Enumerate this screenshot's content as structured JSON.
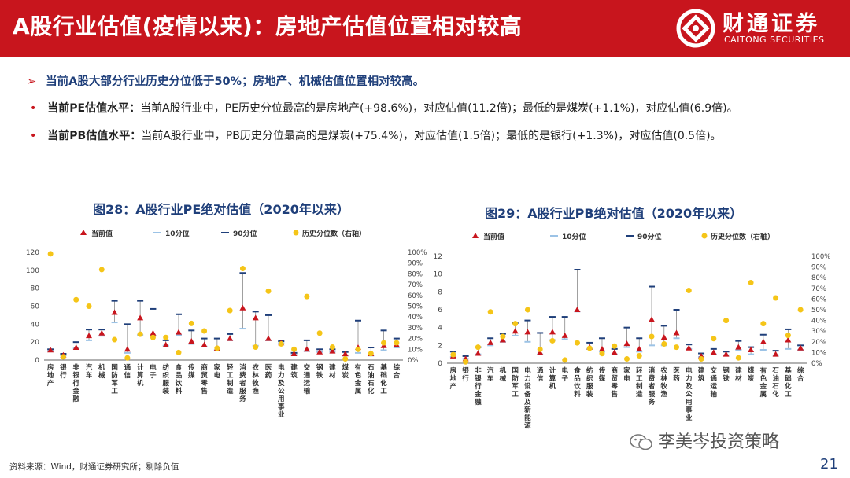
{
  "header": {
    "title": "A股行业估值(疫情以来)：房地产估值位置相对较高",
    "logo_cn": "财通证券",
    "logo_en": "CAITONG SECURITIES"
  },
  "summary": {
    "arrow": "➢",
    "text": "当前A股大部分行业历史分位低于50%；房地产、机械估值位置相对较高。"
  },
  "bullets": [
    {
      "dot": "•",
      "label": "当前PE估值水平：",
      "text": "当前A股行业中，PE历史分位最高的是房地产(+98.6%)，对应估值(11.2倍)；最低的是煤炭(+1.1%)，对应估值(6.9倍)。"
    },
    {
      "dot": "•",
      "label": "当前PB估值水平：",
      "text": "当前A股行业中，PB历史分位最高的是煤炭(+75.4%)，对应估值(1.5倍)；最低的是银行(+1.3%)，对应估值(0.5倍)。"
    }
  ],
  "colors": {
    "red": "#c8151d",
    "navy": "#1f3f7a",
    "lightblue": "#9cc3e6",
    "gold": "#f5c518"
  },
  "chart_data": [
    {
      "type": "scatter",
      "title": "图28：A股行业PE绝对估值（2020年以来）",
      "legend": [
        "当前值",
        "10分位",
        "90分位",
        "历史分位数（右轴）"
      ],
      "categories": [
        "房地产",
        "银行",
        "非银行金融",
        "汽车",
        "机械",
        "国防军工",
        "通信",
        "计算机",
        "电子",
        "纺织服装",
        "食品饮料",
        "传媒",
        "商贸零售",
        "家电",
        "轻工制造",
        "消费者服务",
        "农林牧渔",
        "医药",
        "电力及公用事业",
        "建筑",
        "交通运输",
        "钢铁",
        "建材",
        "煤炭",
        "有色金属",
        "石油石化",
        "基础化工",
        "综合"
      ],
      "current": [
        11.2,
        5.5,
        14,
        27,
        30,
        53,
        12,
        47,
        30,
        17,
        31,
        21,
        17,
        13,
        24,
        58,
        47,
        24,
        19,
        7,
        12,
        9,
        10,
        6.9,
        14,
        7,
        16,
        17
      ],
      "p10": [
        10,
        5,
        13,
        22,
        27,
        42,
        8,
        28,
        27,
        16,
        28,
        18,
        15,
        11,
        22,
        35,
        16,
        22,
        19,
        6,
        10,
        9,
        9,
        5,
        8,
        5,
        11,
        14
      ],
      "p90": [
        12,
        7,
        20,
        34,
        34,
        66,
        40,
        66,
        57,
        22,
        51,
        33,
        24,
        24,
        29,
        97,
        54,
        50,
        21,
        8,
        22,
        12,
        12,
        9,
        44,
        14,
        33,
        24
      ],
      "percentile": [
        98.6,
        3,
        56,
        50,
        84,
        19,
        2,
        24,
        21,
        21,
        7,
        34,
        27,
        11,
        46,
        85,
        12,
        64,
        15,
        10,
        59,
        25,
        12,
        1.1,
        10,
        6,
        16,
        16
      ],
      "ylim": [
        0,
        120
      ],
      "y_ticks": [
        0,
        20,
        40,
        60,
        80,
        100,
        120
      ],
      "y2_ticks": [
        "0%",
        "10%",
        "20%",
        "30%",
        "40%",
        "50%",
        "60%",
        "70%",
        "80%",
        "90%",
        "100%"
      ]
    },
    {
      "type": "scatter",
      "title": "图29：A股行业PB绝对估值（2020年以来）",
      "legend": [
        "当前值",
        "10分位",
        "90分位",
        "历史分位数（右轴）"
      ],
      "categories": [
        "房地产",
        "银行",
        "非银行金融",
        "汽车",
        "机械",
        "国防军工",
        "电力设备及新能源",
        "通信",
        "计算机",
        "电子",
        "食品饮料",
        "纺织服装",
        "传媒",
        "商贸零售",
        "家电",
        "轻工制造",
        "消费者服务",
        "农林牧渔",
        "医药",
        "电力及公用事业",
        "建筑",
        "交通运输",
        "钢铁",
        "建材",
        "煤炭",
        "有色金属",
        "石油石化",
        "基础化工",
        "综合"
      ],
      "current": [
        0.8,
        0.5,
        1.1,
        2.3,
        2.6,
        3.6,
        3.5,
        1.2,
        3.5,
        3.1,
        6.0,
        1.8,
        1.6,
        1.2,
        2.2,
        1.6,
        4.9,
        2.9,
        3.4,
        1.7,
        0.8,
        1.2,
        1.0,
        1.8,
        1.5,
        2.4,
        1.0,
        2.6,
        1.7
      ],
      "p10": [
        0.7,
        0.5,
        1.0,
        2.0,
        2.4,
        3.1,
        2.4,
        1.0,
        2.6,
        2.7,
        5.8,
        1.6,
        1.3,
        1.0,
        1.8,
        1.3,
        2.0,
        2.0,
        2.8,
        1.6,
        0.7,
        1.0,
        0.9,
        1.5,
        1.0,
        1.5,
        0.9,
        1.6,
        1.5
      ],
      "p90": [
        1.3,
        0.8,
        1.8,
        2.8,
        3.3,
        4.5,
        4.8,
        3.4,
        5.2,
        5.2,
        10.5,
        2.3,
        2.8,
        1.6,
        4.0,
        2.8,
        8.6,
        4.2,
        6.0,
        2.1,
        1.1,
        1.6,
        1.3,
        2.5,
        1.8,
        3.2,
        1.4,
        3.8,
        2.0
      ],
      "percentile": [
        8,
        1.3,
        15,
        48,
        25,
        37,
        50,
        13,
        21,
        3,
        19,
        14,
        9,
        16,
        4,
        7,
        25,
        18,
        15,
        68,
        4,
        23,
        40,
        5,
        75.4,
        37,
        61,
        26,
        50
      ],
      "ylim": [
        0,
        12
      ],
      "y_ticks": [
        0,
        2,
        4,
        6,
        8,
        10,
        12
      ],
      "y2_ticks": [
        "0%",
        "10%",
        "20%",
        "30%",
        "40%",
        "50%",
        "60%",
        "70%",
        "80%",
        "90%",
        "100%"
      ]
    }
  ],
  "footer": {
    "source": "资料来源：Wind，财通证券研究所；剔除负值",
    "watermark": "李美岑投资策略",
    "page": "21"
  }
}
